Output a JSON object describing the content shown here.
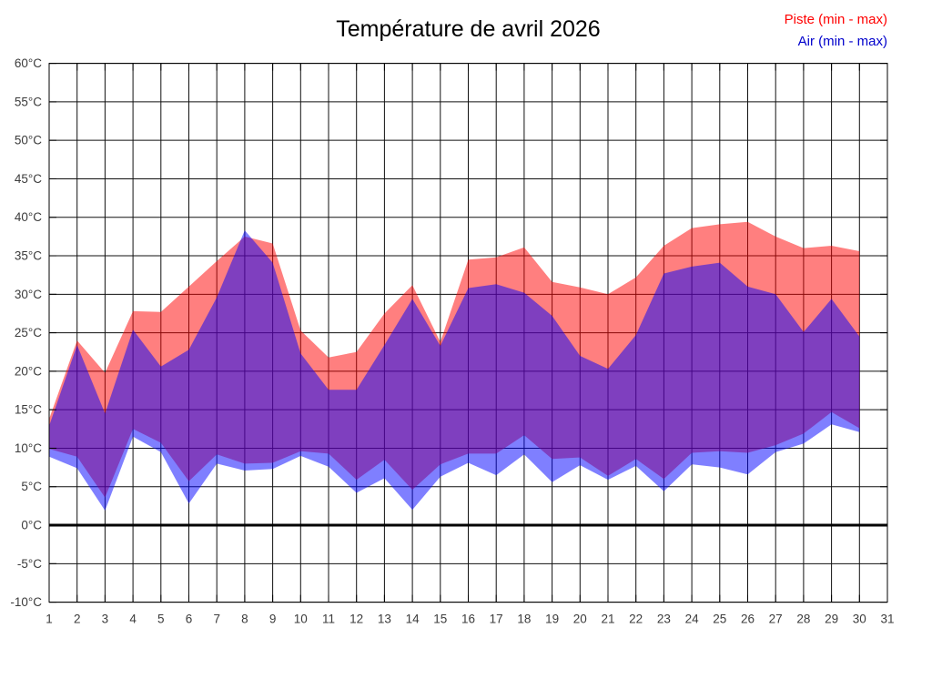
{
  "title": "Température de avril 2026",
  "legend": [
    {
      "label": "Piste (min - max)",
      "color": "#ff0000"
    },
    {
      "label": "Air (min - max)",
      "color": "#0000cc"
    }
  ],
  "colors": {
    "piste_fill": "rgba(255,0,0,0.5)",
    "air_fill": "rgba(0,0,255,0.5)",
    "piste_flat": "#ff8080",
    "air_flat": "#8080ff",
    "overlap": "#8040c0",
    "grid": "#111111",
    "frame": "#000000",
    "zero_line": "#000000",
    "tick_text": "#3c3c3c"
  },
  "chart_data": {
    "type": "area",
    "subtype": "two overlapping daily min–max bands (semi-transparent, overlap renders purple)",
    "title": "Température de avril 2026",
    "xlabel": "",
    "ylabel": "",
    "x": [
      1,
      2,
      3,
      4,
      5,
      6,
      7,
      8,
      9,
      10,
      11,
      12,
      13,
      14,
      15,
      16,
      17,
      18,
      19,
      20,
      21,
      22,
      23,
      24,
      25,
      26,
      27,
      28,
      29,
      30
    ],
    "series": [
      {
        "name": "Piste (min - max)",
        "min": [
          9.9,
          8.9,
          3.6,
          12.5,
          10.7,
          5.7,
          9.2,
          8.0,
          8.1,
          9.6,
          9.3,
          5.9,
          8.5,
          4.6,
          7.9,
          9.3,
          9.3,
          11.7,
          8.6,
          8.8,
          6.4,
          8.6,
          6.0,
          9.4,
          9.6,
          9.4,
          10.4,
          11.9,
          14.7,
          12.6
        ],
        "max": [
          13.8,
          24.0,
          19.8,
          27.8,
          27.7,
          31.0,
          34.3,
          37.5,
          36.6,
          25.3,
          21.8,
          22.5,
          27.5,
          31.2,
          23.8,
          34.5,
          34.8,
          36.1,
          31.6,
          30.9,
          30.0,
          32.2,
          36.3,
          38.6,
          39.1,
          39.4,
          37.5,
          36.0,
          36.3,
          35.6
        ]
      },
      {
        "name": "Air (min - max)",
        "min": [
          8.9,
          7.4,
          1.9,
          11.5,
          9.5,
          2.8,
          8.0,
          7.1,
          7.3,
          9.0,
          7.6,
          4.2,
          6.1,
          2.0,
          6.3,
          8.1,
          6.5,
          9.2,
          5.6,
          7.8,
          5.9,
          7.7,
          4.4,
          7.9,
          7.5,
          6.6,
          9.5,
          10.6,
          13.1,
          12.1
        ],
        "max": [
          12.9,
          23.4,
          14.5,
          25.4,
          20.6,
          22.8,
          29.6,
          38.3,
          34.1,
          22.3,
          17.6,
          17.6,
          23.4,
          29.4,
          23.3,
          30.8,
          31.3,
          30.2,
          27.2,
          22.0,
          20.3,
          24.7,
          32.7,
          33.6,
          34.1,
          31.0,
          30.0,
          25.1,
          29.4,
          24.5
        ]
      }
    ],
    "xlim": [
      1,
      31
    ],
    "ylim": [
      -10,
      60
    ],
    "xticks": [
      1,
      2,
      3,
      4,
      5,
      6,
      7,
      8,
      9,
      10,
      11,
      12,
      13,
      14,
      15,
      16,
      17,
      18,
      19,
      20,
      21,
      22,
      23,
      24,
      25,
      26,
      27,
      28,
      29,
      30,
      31
    ],
    "ytick_step": 5,
    "ytick_labels": [
      "-10°C",
      "-5°C",
      "0°C",
      "5°C",
      "10°C",
      "15°C",
      "20°C",
      "25°C",
      "30°C",
      "35°C",
      "40°C",
      "45°C",
      "50°C",
      "55°C",
      "60°C"
    ],
    "grid": true,
    "zero_line_width": 3,
    "legend_position": "top-right"
  }
}
